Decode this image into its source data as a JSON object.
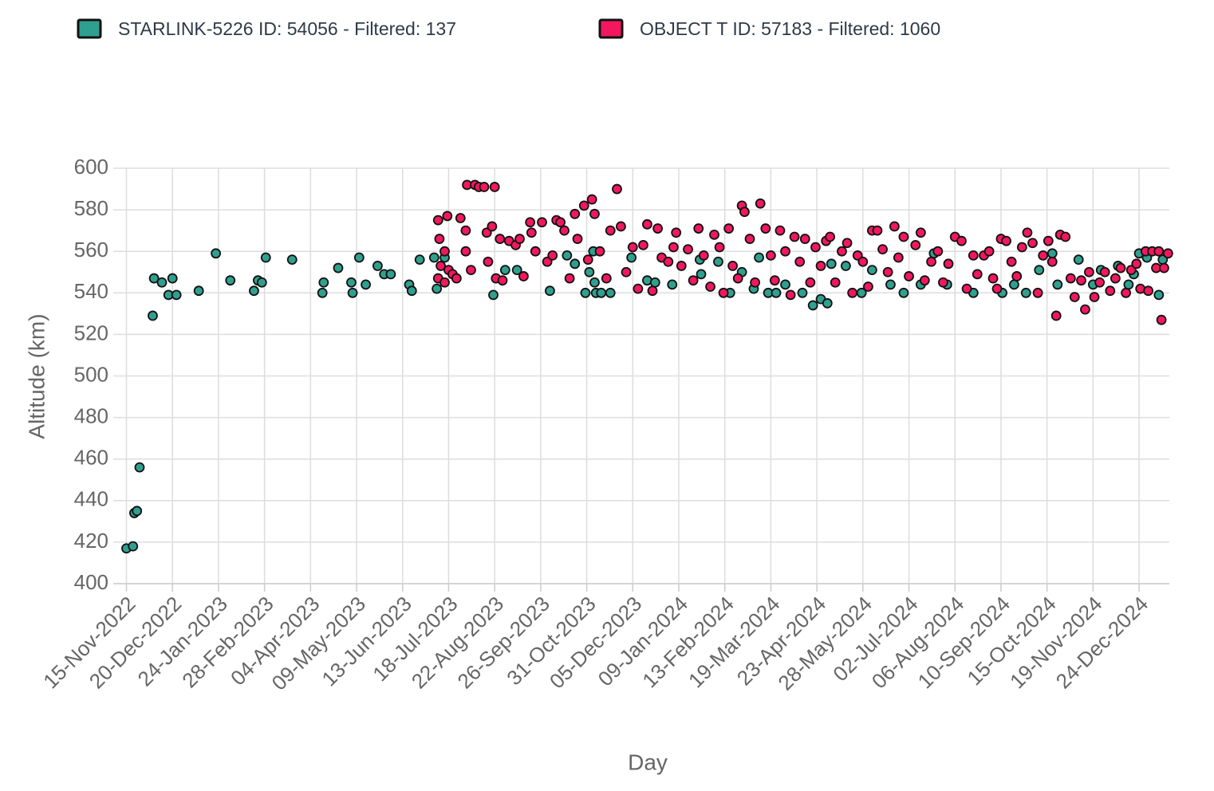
{
  "chart_data": {
    "type": "scatter",
    "xlabel": "Day",
    "ylabel": "Altitude (km)",
    "xlim": [
      "2022-11-05",
      "2025-01-16"
    ],
    "ylim": [
      400,
      600
    ],
    "yticks": [
      400,
      420,
      440,
      460,
      480,
      500,
      520,
      540,
      560,
      580,
      600
    ],
    "xticks": [
      {
        "value": "2022-11-15",
        "label": "15-Nov-2022"
      },
      {
        "value": "2022-12-20",
        "label": "20-Dec-2022"
      },
      {
        "value": "2023-01-24",
        "label": "24-Jan-2023"
      },
      {
        "value": "2023-02-28",
        "label": "28-Feb-2023"
      },
      {
        "value": "2023-04-04",
        "label": "04-Apr-2023"
      },
      {
        "value": "2023-05-09",
        "label": "09-May-2023"
      },
      {
        "value": "2023-06-13",
        "label": "13-Jun-2023"
      },
      {
        "value": "2023-07-18",
        "label": "18-Jul-2023"
      },
      {
        "value": "2023-08-22",
        "label": "22-Aug-2023"
      },
      {
        "value": "2023-09-26",
        "label": "26-Sep-2023"
      },
      {
        "value": "2023-10-31",
        "label": "31-Oct-2023"
      },
      {
        "value": "2023-12-05",
        "label": "05-Dec-2023"
      },
      {
        "value": "2024-01-09",
        "label": "09-Jan-2024"
      },
      {
        "value": "2024-02-13",
        "label": "13-Feb-2024"
      },
      {
        "value": "2024-03-19",
        "label": "19-Mar-2024"
      },
      {
        "value": "2024-04-23",
        "label": "23-Apr-2024"
      },
      {
        "value": "2024-05-28",
        "label": "28-May-2024"
      },
      {
        "value": "2024-07-02",
        "label": "02-Jul-2024"
      },
      {
        "value": "2024-08-06",
        "label": "06-Aug-2024"
      },
      {
        "value": "2024-09-10",
        "label": "10-Sep-2024"
      },
      {
        "value": "2024-10-15",
        "label": "15-Oct-2024"
      },
      {
        "value": "2024-11-19",
        "label": "19-Nov-2024"
      },
      {
        "value": "2024-12-24",
        "label": "24-Dec-2024"
      }
    ],
    "grid": true,
    "series": [
      {
        "name": "STARLINK-5226 ID: 54056 - Filtered: 137",
        "color": "#2fa08f",
        "x": [
          "2022-11-15",
          "2022-11-20",
          "2022-11-21",
          "2022-11-23",
          "2022-11-25",
          "2022-12-05",
          "2022-12-06",
          "2022-12-12",
          "2022-12-17",
          "2022-12-20",
          "2022-12-23",
          "2023-01-09",
          "2023-01-22",
          "2023-02-02",
          "2023-02-20",
          "2023-02-23",
          "2023-02-26",
          "2023-03-01",
          "2023-03-21",
          "2023-04-13",
          "2023-04-14",
          "2023-04-25",
          "2023-05-05",
          "2023-05-06",
          "2023-05-11",
          "2023-05-16",
          "2023-05-25",
          "2023-05-30",
          "2023-06-04",
          "2023-06-18",
          "2023-06-20",
          "2023-06-26",
          "2023-07-07",
          "2023-07-09",
          "2023-07-15",
          "2023-08-21",
          "2023-08-30",
          "2023-09-08",
          "2023-10-03",
          "2023-10-16",
          "2023-10-22",
          "2023-10-30",
          "2023-11-02",
          "2023-11-05",
          "2023-11-06",
          "2023-11-07",
          "2023-11-11",
          "2023-11-18",
          "2023-12-04",
          "2023-12-16",
          "2023-12-22",
          "2024-01-04",
          "2024-01-25",
          "2024-01-26",
          "2024-02-08",
          "2024-02-17",
          "2024-02-26",
          "2024-03-06",
          "2024-03-10",
          "2024-03-17",
          "2024-03-23",
          "2024-03-30",
          "2024-04-12",
          "2024-04-20",
          "2024-04-26",
          "2024-05-01",
          "2024-05-04",
          "2024-05-15",
          "2024-05-27",
          "2024-06-04",
          "2024-06-18",
          "2024-06-28",
          "2024-07-11",
          "2024-07-21",
          "2024-07-31",
          "2024-08-20",
          "2024-09-11",
          "2024-09-20",
          "2024-09-29",
          "2024-10-09",
          "2024-10-19",
          "2024-10-23",
          "2024-11-08",
          "2024-11-19",
          "2024-11-25",
          "2024-12-08",
          "2024-12-16",
          "2024-12-20",
          "2024-12-24",
          "2024-12-30",
          "2025-01-08",
          "2025-01-11"
        ],
        "values": [
          417,
          418,
          434,
          435,
          456,
          529,
          547,
          545,
          539,
          547,
          539,
          541,
          559,
          546,
          541,
          546,
          545,
          557,
          556,
          540,
          545,
          552,
          545,
          540,
          557,
          544,
          553,
          549,
          549,
          544,
          541,
          556,
          557,
          542,
          557,
          539,
          551,
          551,
          541,
          558,
          554,
          540,
          550,
          560,
          545,
          540,
          540,
          540,
          557,
          546,
          545,
          544,
          556,
          549,
          555,
          540,
          550,
          542,
          557,
          540,
          540,
          544,
          540,
          534,
          537,
          535,
          554,
          553,
          540,
          551,
          544,
          540,
          544,
          559,
          544,
          540,
          540,
          544,
          540,
          551,
          559,
          544,
          556,
          544,
          551,
          553,
          544,
          549,
          559,
          557,
          539,
          556
        ]
      },
      {
        "name": "OBJECT T ID: 57183 - Filtered: 1060",
        "color": "#f2175e",
        "x": [
          "2023-07-10",
          "2023-07-10",
          "2023-07-11",
          "2023-07-12",
          "2023-07-15",
          "2023-07-15",
          "2023-07-17",
          "2023-07-18",
          "2023-07-21",
          "2023-07-24",
          "2023-07-27",
          "2023-07-31",
          "2023-07-31",
          "2023-08-01",
          "2023-08-04",
          "2023-08-07",
          "2023-08-10",
          "2023-08-14",
          "2023-08-16",
          "2023-08-17",
          "2023-08-20",
          "2023-08-22",
          "2023-08-23",
          "2023-08-26",
          "2023-08-28",
          "2023-09-02",
          "2023-09-07",
          "2023-09-10",
          "2023-09-13",
          "2023-09-18",
          "2023-09-19",
          "2023-09-22",
          "2023-09-27",
          "2023-10-01",
          "2023-10-05",
          "2023-10-08",
          "2023-10-11",
          "2023-10-14",
          "2023-10-18",
          "2023-10-22",
          "2023-10-24",
          "2023-10-29",
          "2023-11-01",
          "2023-11-04",
          "2023-11-06",
          "2023-11-10",
          "2023-11-15",
          "2023-11-18",
          "2023-11-23",
          "2023-11-26",
          "2023-11-30",
          "2023-12-05",
          "2023-12-09",
          "2023-12-13",
          "2023-12-16",
          "2023-12-20",
          "2023-12-24",
          "2023-12-27",
          "2024-01-01",
          "2024-01-05",
          "2024-01-07",
          "2024-01-11",
          "2024-01-16",
          "2024-01-20",
          "2024-01-24",
          "2024-01-28",
          "2024-02-02",
          "2024-02-05",
          "2024-02-09",
          "2024-02-12",
          "2024-02-16",
          "2024-02-19",
          "2024-02-23",
          "2024-02-26",
          "2024-02-28",
          "2024-03-03",
          "2024-03-07",
          "2024-03-11",
          "2024-03-15",
          "2024-03-19",
          "2024-03-22",
          "2024-03-26",
          "2024-03-30",
          "2024-04-03",
          "2024-04-06",
          "2024-04-10",
          "2024-04-14",
          "2024-04-18",
          "2024-04-22",
          "2024-04-26",
          "2024-04-30",
          "2024-05-03",
          "2024-05-07",
          "2024-05-12",
          "2024-05-16",
          "2024-05-20",
          "2024-05-24",
          "2024-05-28",
          "2024-06-01",
          "2024-06-04",
          "2024-06-08",
          "2024-06-12",
          "2024-06-16",
          "2024-06-21",
          "2024-06-24",
          "2024-06-28",
          "2024-07-02",
          "2024-07-07",
          "2024-07-11",
          "2024-07-14",
          "2024-07-19",
          "2024-07-24",
          "2024-07-28",
          "2024-08-01",
          "2024-08-06",
          "2024-08-11",
          "2024-08-15",
          "2024-08-20",
          "2024-08-23",
          "2024-08-28",
          "2024-09-01",
          "2024-09-04",
          "2024-09-07",
          "2024-09-10",
          "2024-09-14",
          "2024-09-18",
          "2024-09-22",
          "2024-09-26",
          "2024-09-30",
          "2024-10-04",
          "2024-10-08",
          "2024-10-12",
          "2024-10-16",
          "2024-10-19",
          "2024-10-22",
          "2024-10-25",
          "2024-10-29",
          "2024-11-02",
          "2024-11-05",
          "2024-11-10",
          "2024-11-13",
          "2024-11-16",
          "2024-11-20",
          "2024-11-24",
          "2024-11-28",
          "2024-12-02",
          "2024-12-06",
          "2024-12-10",
          "2024-12-14",
          "2024-12-18",
          "2024-12-22",
          "2024-12-25",
          "2024-12-29",
          "2024-12-31",
          "2025-01-03",
          "2025-01-06",
          "2025-01-08",
          "2025-01-10",
          "2025-01-12",
          "2025-01-15"
        ],
        "values": [
          575,
          547,
          566,
          553,
          545,
          560,
          577,
          551,
          549,
          547,
          576,
          570,
          560,
          592,
          551,
          592,
          591,
          591,
          569,
          555,
          572,
          591,
          547,
          566,
          546,
          565,
          563,
          566,
          548,
          574,
          569,
          560,
          574,
          555,
          558,
          575,
          574,
          570,
          547,
          578,
          566,
          582,
          556,
          585,
          578,
          560,
          547,
          570,
          590,
          572,
          550,
          562,
          542,
          563,
          573,
          541,
          571,
          557,
          555,
          562,
          569,
          553,
          561,
          546,
          571,
          558,
          543,
          568,
          562,
          540,
          571,
          553,
          547,
          582,
          579,
          566,
          545,
          583,
          571,
          558,
          546,
          570,
          560,
          539,
          567,
          555,
          566,
          545,
          562,
          553,
          565,
          567,
          545,
          560,
          564,
          540,
          558,
          555,
          543,
          570,
          570,
          561,
          550,
          572,
          557,
          567,
          548,
          563,
          569,
          546,
          555,
          560,
          545,
          554,
          567,
          565,
          542,
          558,
          549,
          558,
          560,
          547,
          542,
          566,
          565,
          555,
          548,
          562,
          569,
          564,
          540,
          558,
          565,
          555,
          529,
          568,
          567,
          547,
          538,
          546,
          532,
          550,
          538,
          545,
          550,
          541,
          547,
          552,
          540,
          551,
          554,
          542,
          560,
          541,
          560,
          552,
          560,
          527,
          552,
          559
        ]
      }
    ]
  }
}
